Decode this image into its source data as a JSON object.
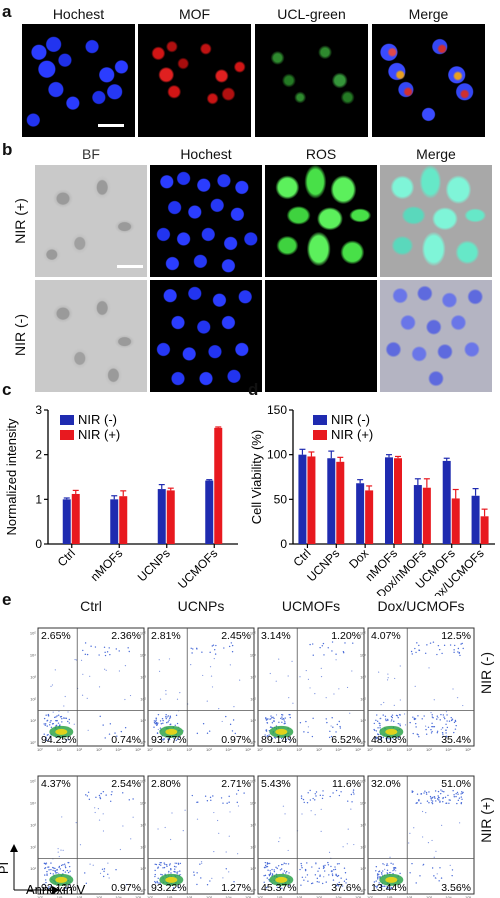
{
  "panel_a": {
    "label": "a",
    "titles": [
      "Hochest",
      "MOF",
      "UCL-green",
      "Merge"
    ]
  },
  "panel_b": {
    "label": "b",
    "titles": [
      "BF",
      "Hochest",
      "ROS",
      "Merge"
    ],
    "rows": [
      "NIR (+)",
      "NIR (-)"
    ]
  },
  "panel_c": {
    "label": "c"
  },
  "panel_d": {
    "label": "d"
  },
  "panel_e": {
    "label": "e",
    "titles": [
      "Ctrl",
      "UCNPs",
      "UCMOFs",
      "Dox/UCMOFs"
    ],
    "rows": [
      "NIR (-)",
      "NIR (+)"
    ],
    "y_axis": "PI",
    "x_axis": "Annexin V",
    "quadrants": [
      [
        [
          "2.65%",
          "2.36%",
          "94.25%",
          "0.74%"
        ],
        [
          "2.81%",
          "2.45%",
          "93.77%",
          "0.97%"
        ],
        [
          "3.14%",
          "1.20%",
          "89.14%",
          "6.52%"
        ],
        [
          "4.07%",
          "12.5%",
          "48.03%",
          "35.4%"
        ]
      ],
      [
        [
          "4.37%",
          "2.54%",
          "92.12%",
          "0.97%"
        ],
        [
          "2.80%",
          "2.71%",
          "93.22%",
          "1.27%"
        ],
        [
          "5.43%",
          "11.6%",
          "45.37%",
          "37.6%"
        ],
        [
          "32.0%",
          "51.0%",
          "13.44%",
          "3.56%"
        ]
      ]
    ]
  },
  "chart_data": [
    {
      "type": "bar",
      "ylabel": "Normalized intensity",
      "categories": [
        "Ctrl",
        "nMOFs",
        "UCNPs",
        "UCMOFs"
      ],
      "ylim": [
        0,
        3
      ],
      "yticks": [
        "0",
        "1",
        "2",
        "3"
      ],
      "series": [
        {
          "name": "NIR (-)",
          "color": "#1f2bb0",
          "values": [
            1.0,
            1.0,
            1.23,
            1.42
          ],
          "errors": [
            0.03,
            0.08,
            0.1,
            0.02
          ]
        },
        {
          "name": "NIR (+)",
          "color": "#e8191f",
          "values": [
            1.12,
            1.07,
            1.2,
            2.6
          ],
          "errors": [
            0.08,
            0.12,
            0.05,
            0.02
          ]
        }
      ],
      "legend": "top-left"
    },
    {
      "type": "bar",
      "ylabel": "Cell Viability (%)",
      "categories": [
        "Ctrl",
        "UCNPs",
        "Dox",
        "nMOFs",
        "Dox/nMOFs",
        "UCMOFs",
        "Dox/UCMOFs"
      ],
      "ylim": [
        0,
        150
      ],
      "yticks": [
        "0",
        "50",
        "100",
        "150"
      ],
      "series": [
        {
          "name": "NIR (-)",
          "color": "#1f2bb0",
          "values": [
            100,
            96,
            68,
            97,
            66,
            93,
            54
          ],
          "errors": [
            6,
            8,
            4,
            3,
            7,
            3,
            8
          ]
        },
        {
          "name": "NIR (+)",
          "color": "#e8191f",
          "values": [
            98,
            92,
            60,
            96,
            63,
            51,
            31
          ],
          "errors": [
            5,
            5,
            5,
            2,
            10,
            10,
            8
          ]
        }
      ],
      "legend": "top-center"
    }
  ]
}
